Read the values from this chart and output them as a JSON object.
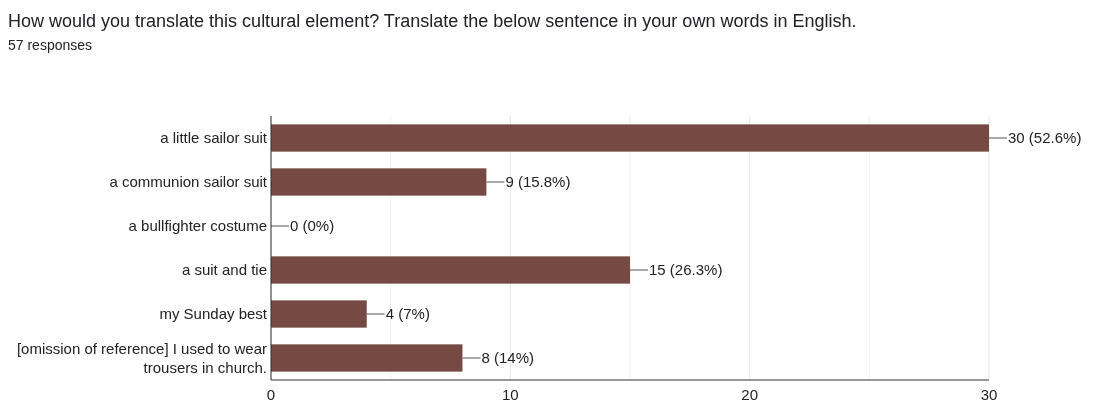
{
  "chart_data": {
    "type": "bar",
    "orientation": "horizontal",
    "title": "How would you translate this cultural element? Translate the below sentence in your own words in English.",
    "subtitle": "57 responses",
    "categories": [
      "a little sailor suit",
      "a communion sailor suit",
      "a bullfighter costume",
      "a suit and tie",
      "my Sunday best",
      "[omission of reference] I used to wear trousers in church."
    ],
    "values": [
      30,
      9,
      0,
      15,
      4,
      8
    ],
    "value_labels": [
      "30 (52.6%)",
      "9 (15.8%)",
      "0 (0%)",
      "15 (26.3%)",
      "4 (7%)",
      "8 (14%)"
    ],
    "color": "#744a43",
    "xlim": [
      0,
      30
    ],
    "xticks": [
      0,
      {
        "value": 5,
        "label": null
      },
      10,
      {
        "value": 15,
        "label": null
      },
      20,
      {
        "value": 25,
        "label": null
      },
      30
    ],
    "grid": "x"
  }
}
